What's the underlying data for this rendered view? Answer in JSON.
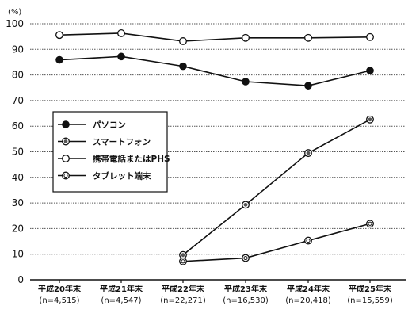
{
  "chart_data": {
    "type": "line",
    "unit_label": "(%)",
    "ylim": [
      0,
      100
    ],
    "yticks": [
      0,
      10,
      20,
      30,
      40,
      50,
      60,
      70,
      80,
      90,
      100
    ],
    "grid": "horizontal",
    "legend_placement": "center-left",
    "categories": [
      "平成20年末",
      "平成21年末",
      "平成22年末",
      "平成23年末",
      "平成24年末",
      "平成25年末"
    ],
    "sample_sizes": [
      "(n=4,515)",
      "(n=4,547)",
      "(n=22,271)",
      "(n=16,530)",
      "(n=20,418)",
      "(n=15,559)"
    ],
    "series": [
      {
        "name": "パソコン",
        "marker": "filled",
        "values": [
          85.9,
          87.2,
          83.4,
          77.4,
          75.8,
          81.7
        ]
      },
      {
        "name": "スマートフォン",
        "marker": "dot",
        "values": [
          null,
          null,
          9.7,
          29.3,
          49.5,
          62.6
        ]
      },
      {
        "name": "携帯電話またはPHS",
        "marker": "open",
        "values": [
          95.6,
          96.3,
          93.2,
          94.5,
          94.5,
          94.8
        ]
      },
      {
        "name": "タブレット端末",
        "marker": "ring",
        "values": [
          null,
          null,
          7.2,
          8.5,
          15.3,
          21.9
        ]
      }
    ]
  }
}
